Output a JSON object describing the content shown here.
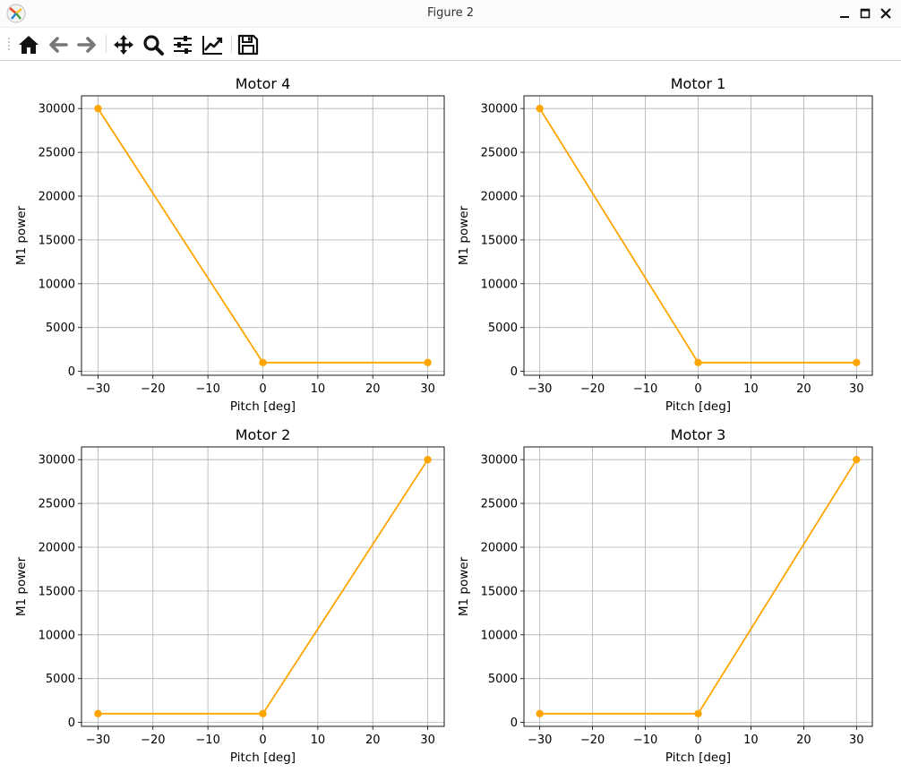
{
  "window": {
    "title": "Figure 2"
  },
  "toolbar": {
    "buttons": [
      {
        "name": "home",
        "icon": "home-icon"
      },
      {
        "name": "back",
        "icon": "arrow-left-icon"
      },
      {
        "name": "forward",
        "icon": "arrow-right-icon"
      },
      {
        "name": "pan",
        "icon": "move-icon"
      },
      {
        "name": "zoom",
        "icon": "magnifier-icon"
      },
      {
        "name": "configure-subplots",
        "icon": "sliders-icon"
      },
      {
        "name": "edit-axis",
        "icon": "line-chart-icon"
      },
      {
        "name": "save",
        "icon": "floppy-disk-icon"
      }
    ]
  },
  "chart_data": [
    {
      "type": "line",
      "title": "Motor 4",
      "xlabel": "Pitch [deg]",
      "ylabel": "M1 power",
      "x": [
        -30,
        0,
        30
      ],
      "y": [
        30000,
        1000,
        1000
      ],
      "xlim": [
        -33,
        33
      ],
      "ylim": [
        -450,
        31450
      ],
      "xticks": [
        -30,
        -20,
        -10,
        0,
        10,
        20,
        30
      ],
      "xtick_labels": [
        "−30",
        "−20",
        "−10",
        "0",
        "10",
        "20",
        "30"
      ],
      "yticks": [
        0,
        5000,
        10000,
        15000,
        20000,
        25000,
        30000
      ],
      "ytick_labels": [
        "0",
        "5000",
        "10000",
        "15000",
        "20000",
        "25000",
        "30000"
      ],
      "grid": true,
      "color": "#ffa500"
    },
    {
      "type": "line",
      "title": "Motor 1",
      "xlabel": "Pitch [deg]",
      "ylabel": "M1 power",
      "x": [
        -30,
        0,
        30
      ],
      "y": [
        30000,
        1000,
        1000
      ],
      "xlim": [
        -33,
        33
      ],
      "ylim": [
        -450,
        31450
      ],
      "xticks": [
        -30,
        -20,
        -10,
        0,
        10,
        20,
        30
      ],
      "xtick_labels": [
        "−30",
        "−20",
        "−10",
        "0",
        "10",
        "20",
        "30"
      ],
      "yticks": [
        0,
        5000,
        10000,
        15000,
        20000,
        25000,
        30000
      ],
      "ytick_labels": [
        "0",
        "5000",
        "10000",
        "15000",
        "20000",
        "25000",
        "30000"
      ],
      "grid": true,
      "color": "#ffa500"
    },
    {
      "type": "line",
      "title": "Motor 2",
      "xlabel": "Pitch [deg]",
      "ylabel": "M1 power",
      "x": [
        -30,
        0,
        30
      ],
      "y": [
        1000,
        1000,
        30000
      ],
      "xlim": [
        -33,
        33
      ],
      "ylim": [
        -450,
        31450
      ],
      "xticks": [
        -30,
        -20,
        -10,
        0,
        10,
        20,
        30
      ],
      "xtick_labels": [
        "−30",
        "−20",
        "−10",
        "0",
        "10",
        "20",
        "30"
      ],
      "yticks": [
        0,
        5000,
        10000,
        15000,
        20000,
        25000,
        30000
      ],
      "ytick_labels": [
        "0",
        "5000",
        "10000",
        "15000",
        "20000",
        "25000",
        "30000"
      ],
      "grid": true,
      "color": "#ffa500"
    },
    {
      "type": "line",
      "title": "Motor 3",
      "xlabel": "Pitch [deg]",
      "ylabel": "M1 power",
      "x": [
        -30,
        0,
        30
      ],
      "y": [
        1000,
        1000,
        30000
      ],
      "xlim": [
        -33,
        33
      ],
      "ylim": [
        -450,
        31450
      ],
      "xticks": [
        -30,
        -20,
        -10,
        0,
        10,
        20,
        30
      ],
      "xtick_labels": [
        "−30",
        "−20",
        "−10",
        "0",
        "10",
        "20",
        "30"
      ],
      "yticks": [
        0,
        5000,
        10000,
        15000,
        20000,
        25000,
        30000
      ],
      "ytick_labels": [
        "0",
        "5000",
        "10000",
        "15000",
        "20000",
        "25000",
        "30000"
      ],
      "grid": true,
      "color": "#ffa500"
    }
  ]
}
